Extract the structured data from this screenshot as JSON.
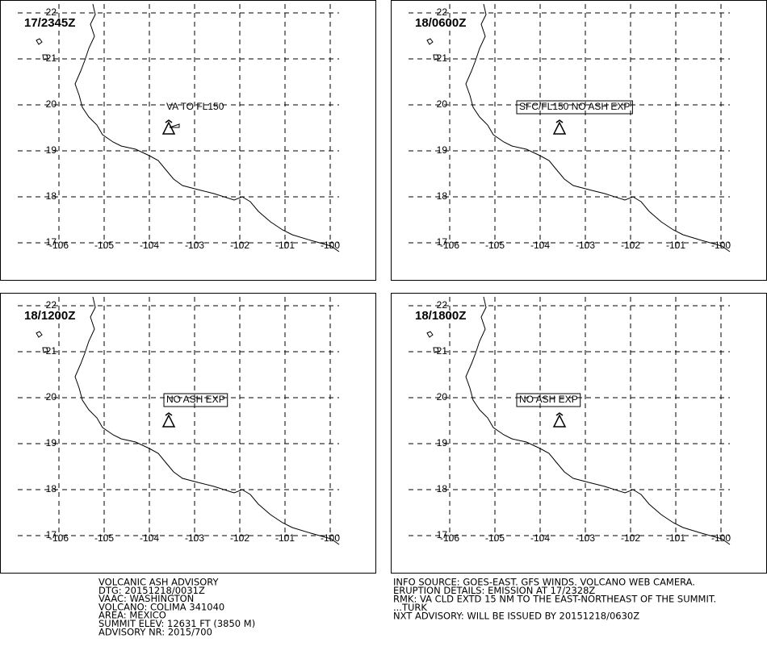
{
  "map": {
    "lon_labels": [
      "-106",
      "-105",
      "-104",
      "-103",
      "-102",
      "-101",
      "-100"
    ],
    "lat_labels": [
      "17",
      "18",
      "19",
      "20",
      "21",
      "22"
    ],
    "panels": [
      {
        "time": "17/2345Z",
        "annotation": "VA TO FL150",
        "boxed": false
      },
      {
        "time": "18/0600Z",
        "annotation": "SFC/FL150 NO ASH EXP",
        "boxed": true
      },
      {
        "time": "18/1200Z",
        "annotation": "NO ASH EXP",
        "boxed": true
      },
      {
        "time": "18/1800Z",
        "annotation": "NO ASH EXP",
        "boxed": true
      }
    ]
  },
  "advisory_left": [
    "VOLCANIC ASH ADVISORY",
    "DTG: 20151218/0031Z",
    "VAAC: WASHINGTON",
    "VOLCANO: COLIMA 341040",
    "AREA: MEXICO",
    "SUMMIT ELEV: 12631 FT (3850 M)",
    "ADVISORY NR: 2015/700"
  ],
  "advisory_right": [
    "INFO SOURCE: GOES-EAST. GFS WINDS. VOLCANO WEB CAMERA.",
    "ERUPTION DETAILS: EMISSION AT 17/2328Z",
    "RMK: VA CLD EXTD 15 NM TO THE EAST-NORTHEAST OF THE SUMMIT.",
    "...TURK",
    "NXT ADVISORY: WILL BE ISSUED BY 20151218/0630Z"
  ]
}
